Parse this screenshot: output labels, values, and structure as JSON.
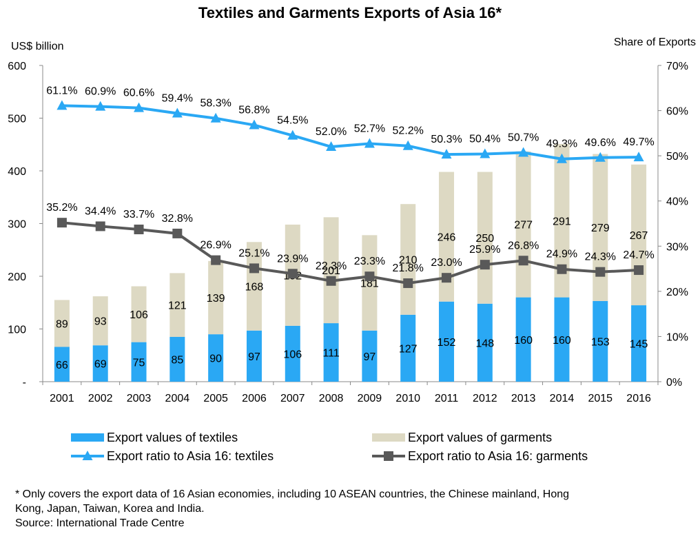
{
  "chart_data": {
    "type": "bar",
    "title": "Textiles and Garments Exports of Asia 16*",
    "y_left_label": "US$ billion",
    "y_right_label": "Share of Exports",
    "y_left_ticks": [
      "-",
      "100",
      "200",
      "300",
      "400",
      "500",
      "600"
    ],
    "y_left_lim": [
      0,
      600
    ],
    "y_right_ticks": [
      "0%",
      "10%",
      "20%",
      "30%",
      "40%",
      "50%",
      "60%",
      "70%"
    ],
    "y_right_lim": [
      0,
      70
    ],
    "categories": [
      "2001",
      "2002",
      "2003",
      "2004",
      "2005",
      "2006",
      "2007",
      "2008",
      "2009",
      "2010",
      "2011",
      "2012",
      "2013",
      "2014",
      "2015",
      "2016"
    ],
    "series": [
      {
        "name": "Export values of textiles",
        "kind": "bar",
        "stack": 0,
        "color": "#2aa8f4",
        "values": [
          66,
          69,
          75,
          85,
          90,
          97,
          106,
          111,
          97,
          127,
          152,
          148,
          160,
          160,
          153,
          145
        ]
      },
      {
        "name": "Export values of garments",
        "kind": "bar",
        "stack": 1,
        "color": "#ddd9c3",
        "values": [
          89,
          93,
          106,
          121,
          139,
          168,
          192,
          201,
          181,
          210,
          246,
          250,
          277,
          291,
          279,
          267
        ]
      },
      {
        "name": "Export ratio to Asia 16: textiles",
        "kind": "line",
        "axis": "right",
        "color": "#2aa8f4",
        "marker": "triangle",
        "values": [
          61.1,
          60.9,
          60.6,
          59.4,
          58.3,
          56.8,
          54.5,
          52.0,
          52.7,
          52.2,
          50.3,
          50.4,
          50.7,
          49.3,
          49.6,
          49.7
        ],
        "labels": [
          "61.1%",
          "60.9%",
          "60.6%",
          "59.4%",
          "58.3%",
          "56.8%",
          "54.5%",
          "52.0%",
          "52.7%",
          "52.2%",
          "50.3%",
          "50.4%",
          "50.7%",
          "49.3%",
          "49.6%",
          "49.7%"
        ]
      },
      {
        "name": "Export ratio to Asia 16: garments",
        "kind": "line",
        "axis": "right",
        "color": "#595959",
        "marker": "square",
        "values": [
          35.2,
          34.4,
          33.7,
          32.8,
          26.9,
          25.1,
          23.9,
          22.3,
          23.3,
          21.8,
          23.0,
          25.9,
          26.8,
          24.9,
          24.3,
          24.7
        ],
        "labels": [
          "35.2%",
          "34.4%",
          "33.7%",
          "32.8%",
          "26.9%",
          "25.1%",
          "23.9%",
          "22.3%",
          "23.3%",
          "21.8%",
          "23.0%",
          "25.9%",
          "26.8%",
          "24.9%",
          "24.3%",
          "24.7%"
        ]
      }
    ],
    "legend_position": "bottom"
  },
  "footnote": {
    "line1": "* Only covers the export data of 16 Asian economies, including 10 ASEAN countries, the Chinese mainland, Hong",
    "line2": "Kong, Japan, Taiwan, Korea and India.",
    "source": "Source: International Trade Centre"
  }
}
